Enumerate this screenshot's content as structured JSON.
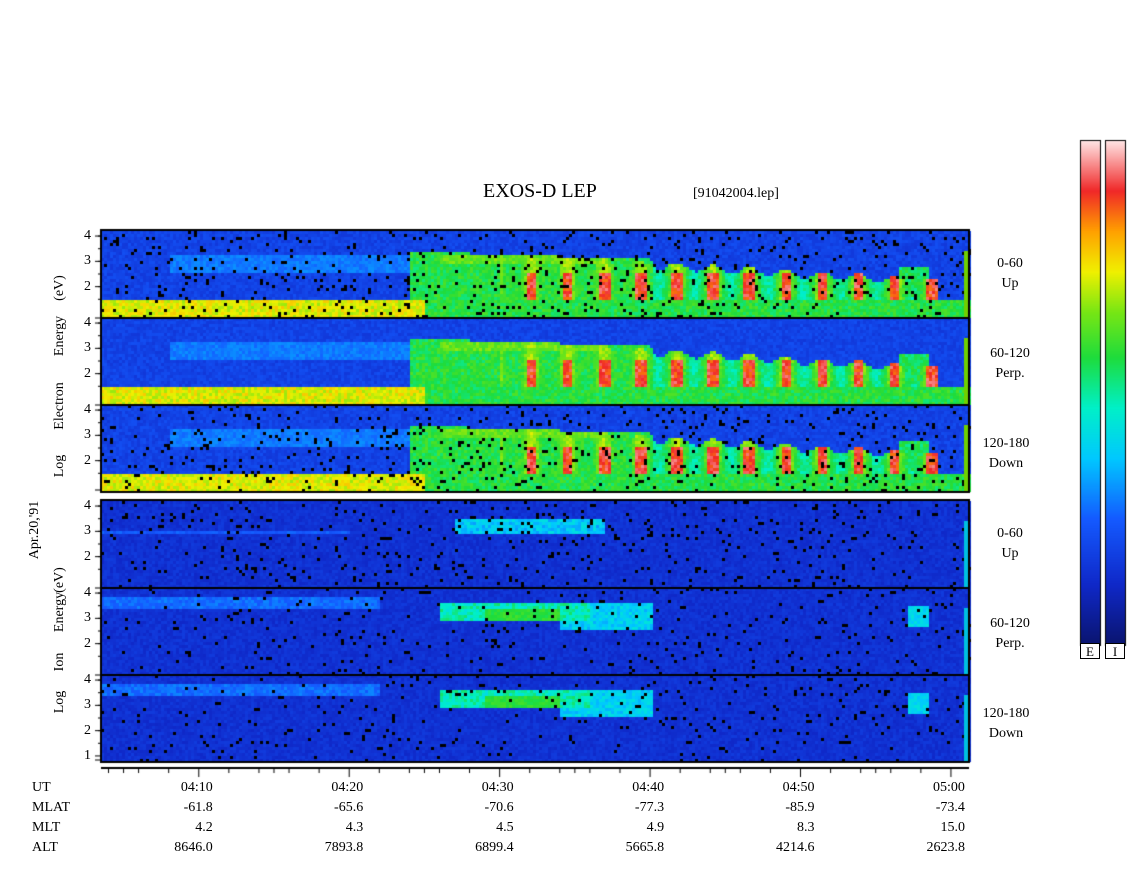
{
  "title": "EXOS-D LEP",
  "file": "[91042004.lep]",
  "date": "Apr.20,'91",
  "electron": {
    "ylabel_left": "Log Electron Energy (eV)",
    "ylabel_left_parts": [
      "Log",
      "Electron",
      "Energy",
      "(eV)"
    ],
    "panels": [
      {
        "range": "0-60",
        "dir": "Up"
      },
      {
        "range": "60-120",
        "dir": "Perp."
      },
      {
        "range": "120-180",
        "dir": "Down"
      }
    ]
  },
  "ion": {
    "ylabel_left_parts": [
      "Log",
      "Ion",
      "Energy",
      "(eV)"
    ],
    "panels": [
      {
        "range": "0-60",
        "dir": "Up"
      },
      {
        "range": "60-120",
        "dir": "Perp."
      },
      {
        "range": "120-180",
        "dir": "Down"
      }
    ]
  },
  "colorbar": {
    "labels": [
      "E",
      "I"
    ]
  },
  "chart_data": {
    "type": "heatmap",
    "title": "EXOS-D LEP",
    "y_ticks": [
      "4",
      "3",
      "2"
    ],
    "y_ticks_bottom": [
      "4",
      "3",
      "2",
      "1"
    ],
    "time_axis": {
      "label_rows": [
        "UT",
        "MLAT",
        "MLT",
        "ALT"
      ],
      "columns": [
        {
          "UT": "04:10",
          "MLAT": "-61.8",
          "MLT": "4.2",
          "ALT": "8646.0"
        },
        {
          "UT": "04:20",
          "MLAT": "-65.6",
          "MLT": "4.3",
          "ALT": "7893.8"
        },
        {
          "UT": "04:30",
          "MLAT": "-70.6",
          "MLT": "4.5",
          "ALT": "6899.4"
        },
        {
          "UT": "04:40",
          "MLAT": "-77.3",
          "MLT": "4.9",
          "ALT": "5665.8"
        },
        {
          "UT": "04:50",
          "MLAT": "-85.9",
          "MLT": "8.3",
          "ALT": "4214.6"
        },
        {
          "UT": "05:00",
          "MLAT": "-73.4",
          "MLT": "15.0",
          "ALT": "2623.8"
        }
      ]
    }
  }
}
